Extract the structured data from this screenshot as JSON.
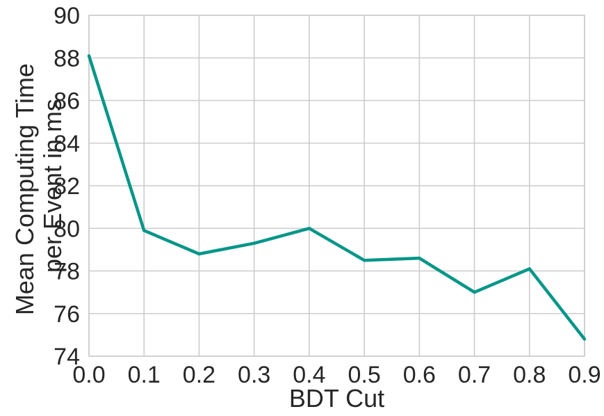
{
  "chart_data": {
    "type": "line",
    "title": "",
    "xlabel": "BDT Cut",
    "ylabel_lines": [
      "Mean Computing Time",
      "per Event in ms"
    ],
    "xlim": [
      0.0,
      0.9
    ],
    "ylim": [
      74,
      90
    ],
    "x_ticks": [
      "0.0",
      "0.1",
      "0.2",
      "0.3",
      "0.4",
      "0.5",
      "0.6",
      "0.7",
      "0.8",
      "0.9"
    ],
    "y_ticks": [
      "74",
      "76",
      "78",
      "80",
      "82",
      "84",
      "86",
      "88",
      "90"
    ],
    "grid": true,
    "line_color": "#009688",
    "series": [
      {
        "x": [
          0.0,
          0.1,
          0.2,
          0.3,
          0.4,
          0.5,
          0.6,
          0.7,
          0.8,
          0.9
        ],
        "values": [
          88.1,
          79.9,
          78.8,
          79.3,
          80.0,
          78.5,
          78.6,
          77.0,
          78.1,
          74.8
        ]
      }
    ]
  }
}
